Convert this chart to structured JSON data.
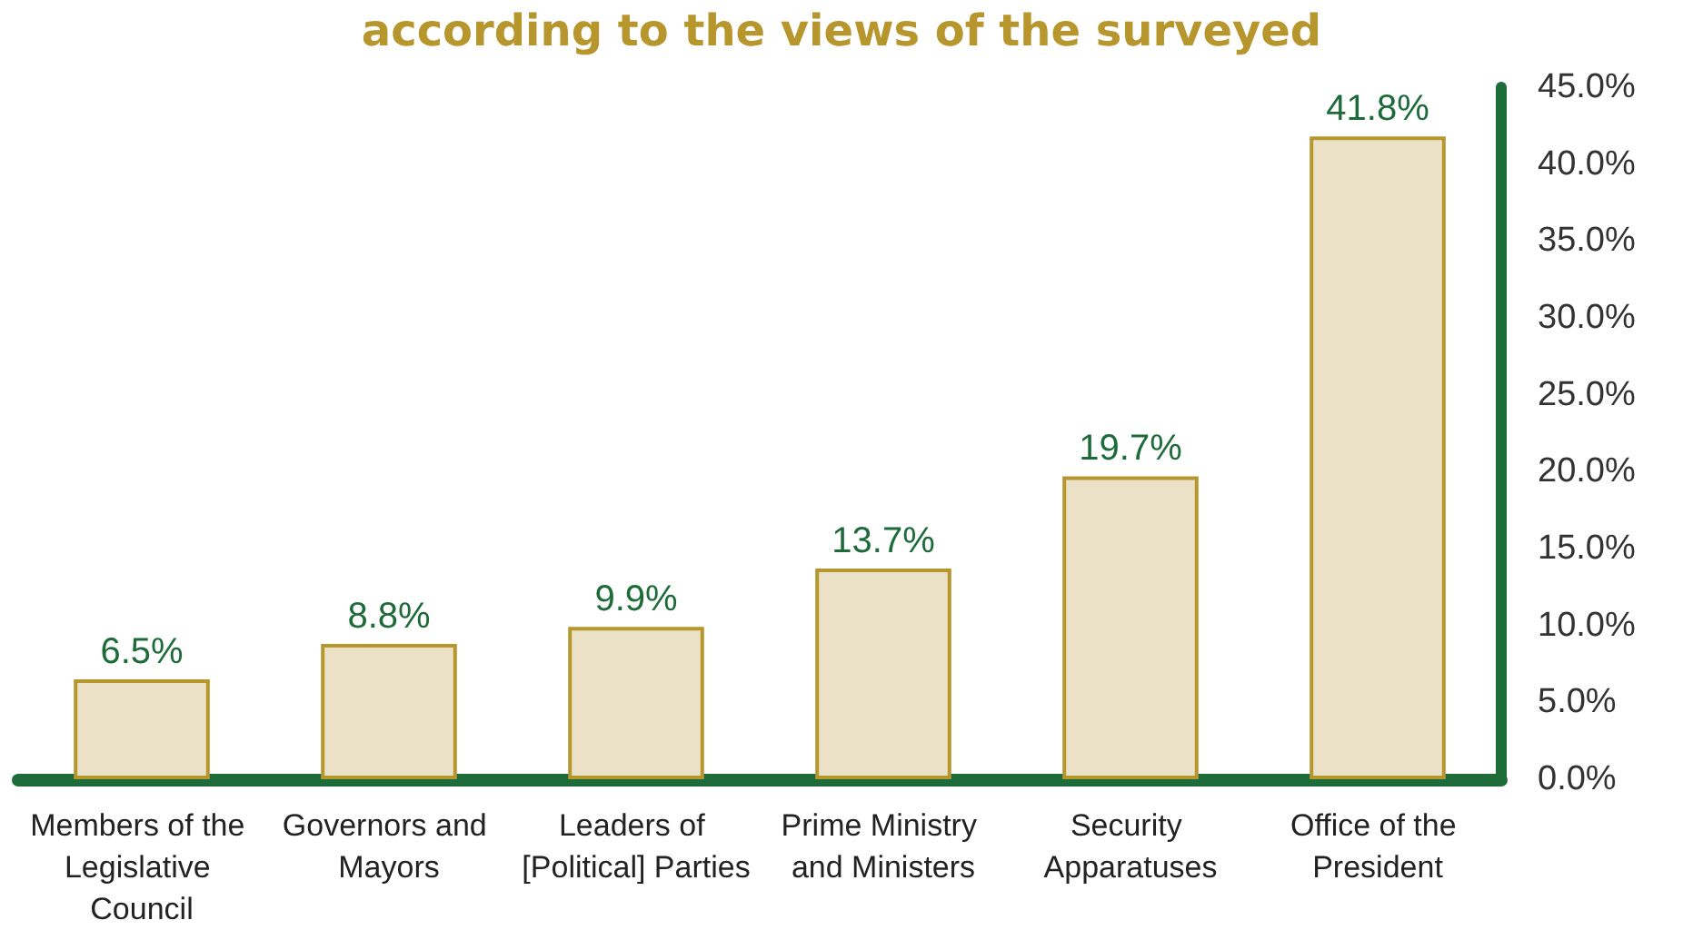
{
  "chart_data": {
    "type": "bar",
    "title": "according to the views of the surveyed",
    "categories": [
      "Members of the Legislative Council",
      "Governors and Mayors",
      "Leaders of [Political] Parties",
      "Prime Ministry and Ministers",
      "Security Apparatuses",
      "Office of the President"
    ],
    "values": [
      6.5,
      8.8,
      9.9,
      13.7,
      19.7,
      41.8
    ],
    "value_labels": [
      "6.5%",
      "8.8%",
      "9.9%",
      "13.7%",
      "19.7%",
      "41.8%"
    ],
    "color": "#ebe1c6",
    "ylim": [
      0,
      45
    ],
    "yticks": [
      {
        "value": 0,
        "label": "0.0%"
      },
      {
        "value": 5,
        "label": "5.0%"
      },
      {
        "value": 10,
        "label": "10.0%"
      },
      {
        "value": 15,
        "label": "15.0%"
      },
      {
        "value": 20,
        "label": "20.0%"
      },
      {
        "value": 25,
        "label": "25.0%"
      },
      {
        "value": 30,
        "label": "30.0%"
      },
      {
        "value": 35,
        "label": "35.0%"
      },
      {
        "value": 40,
        "label": "40.0%"
      },
      {
        "value": 45,
        "label": "45.0%"
      }
    ],
    "grid": false
  }
}
